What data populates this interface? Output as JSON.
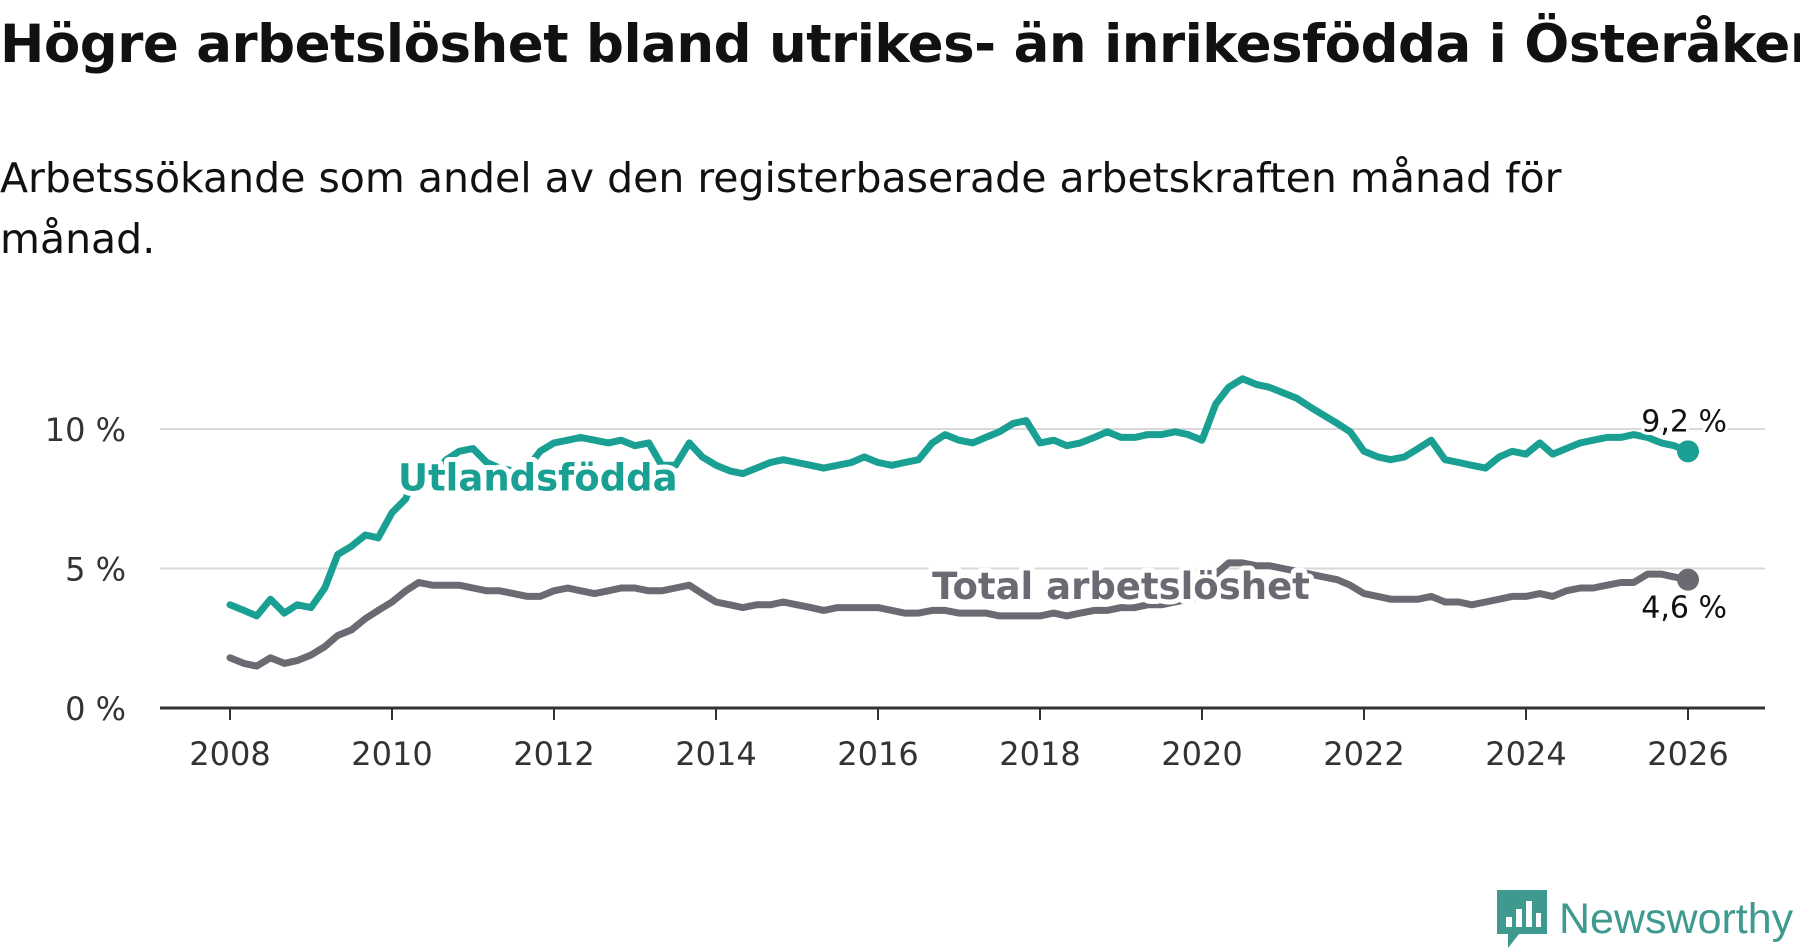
{
  "title": "Högre arbetslöshet bland utrikes- än inrikesfödda i Österåker",
  "subtitle": "Arbetssökande som andel av den registerbaserade arbetskraften månad för månad.",
  "logo": {
    "text": "Newsworthy",
    "icon": "chart-bars-icon",
    "color": "#3e9a8f"
  },
  "chart_data": {
    "type": "line",
    "x_unit": "year",
    "xlim": [
      2007.2,
      2026.9
    ],
    "ylim": [
      0,
      11.5
    ],
    "grid": true,
    "x_ticks": [
      {
        "value": 2008,
        "label": "2008"
      },
      {
        "value": 2010,
        "label": "2010"
      },
      {
        "value": 2012,
        "label": "2012"
      },
      {
        "value": 2014,
        "label": "2014"
      },
      {
        "value": 2016,
        "label": "2016"
      },
      {
        "value": 2018,
        "label": "2018"
      },
      {
        "value": 2020,
        "label": "2020"
      },
      {
        "value": 2022,
        "label": "2022"
      },
      {
        "value": 2024,
        "label": "2024"
      },
      {
        "value": 2026,
        "label": "2026"
      }
    ],
    "y_ticks": [
      {
        "value": 0,
        "label": "0 %"
      },
      {
        "value": 5,
        "label": "5 %"
      },
      {
        "value": 10,
        "label": "10 %"
      }
    ],
    "series": [
      {
        "name": "Utlandsfödda",
        "label": "Utlandsfödda",
        "color": "#19a092",
        "end_label": "9,2 %",
        "label_at": {
          "x": 2011.8,
          "y": 7.8
        },
        "points": [
          [
            2008.0,
            3.7
          ],
          [
            2008.17,
            3.5
          ],
          [
            2008.33,
            3.3
          ],
          [
            2008.5,
            3.9
          ],
          [
            2008.67,
            3.4
          ],
          [
            2008.83,
            3.7
          ],
          [
            2009.0,
            3.6
          ],
          [
            2009.17,
            4.3
          ],
          [
            2009.33,
            5.5
          ],
          [
            2009.5,
            5.8
          ],
          [
            2009.67,
            6.2
          ],
          [
            2009.83,
            6.1
          ],
          [
            2010.0,
            7.0
          ],
          [
            2010.17,
            7.5
          ],
          [
            2010.33,
            8.7
          ],
          [
            2010.5,
            8.3
          ],
          [
            2010.67,
            8.9
          ],
          [
            2010.83,
            9.2
          ],
          [
            2011.0,
            9.3
          ],
          [
            2011.17,
            8.8
          ],
          [
            2011.33,
            8.6
          ],
          [
            2011.5,
            8.5
          ],
          [
            2011.67,
            8.6
          ],
          [
            2011.83,
            9.2
          ],
          [
            2012.0,
            9.5
          ],
          [
            2012.17,
            9.6
          ],
          [
            2012.33,
            9.7
          ],
          [
            2012.5,
            9.6
          ],
          [
            2012.67,
            9.5
          ],
          [
            2012.83,
            9.6
          ],
          [
            2013.0,
            9.4
          ],
          [
            2013.17,
            9.5
          ],
          [
            2013.33,
            8.7
          ],
          [
            2013.5,
            8.7
          ],
          [
            2013.67,
            9.5
          ],
          [
            2013.83,
            9.0
          ],
          [
            2014.0,
            8.7
          ],
          [
            2014.17,
            8.5
          ],
          [
            2014.33,
            8.4
          ],
          [
            2014.5,
            8.6
          ],
          [
            2014.67,
            8.8
          ],
          [
            2014.83,
            8.9
          ],
          [
            2015.0,
            8.8
          ],
          [
            2015.17,
            8.7
          ],
          [
            2015.33,
            8.6
          ],
          [
            2015.5,
            8.7
          ],
          [
            2015.67,
            8.8
          ],
          [
            2015.83,
            9.0
          ],
          [
            2016.0,
            8.8
          ],
          [
            2016.17,
            8.7
          ],
          [
            2016.33,
            8.8
          ],
          [
            2016.5,
            8.9
          ],
          [
            2016.67,
            9.5
          ],
          [
            2016.83,
            9.8
          ],
          [
            2017.0,
            9.6
          ],
          [
            2017.17,
            9.5
          ],
          [
            2017.33,
            9.7
          ],
          [
            2017.5,
            9.9
          ],
          [
            2017.67,
            10.2
          ],
          [
            2017.83,
            10.3
          ],
          [
            2018.0,
            9.5
          ],
          [
            2018.17,
            9.6
          ],
          [
            2018.33,
            9.4
          ],
          [
            2018.5,
            9.5
          ],
          [
            2018.67,
            9.7
          ],
          [
            2018.83,
            9.9
          ],
          [
            2019.0,
            9.7
          ],
          [
            2019.17,
            9.7
          ],
          [
            2019.33,
            9.8
          ],
          [
            2019.5,
            9.8
          ],
          [
            2019.67,
            9.9
          ],
          [
            2019.83,
            9.8
          ],
          [
            2020.0,
            9.6
          ],
          [
            2020.17,
            10.9
          ],
          [
            2020.33,
            11.5
          ],
          [
            2020.5,
            11.8
          ],
          [
            2020.67,
            11.6
          ],
          [
            2020.83,
            11.5
          ],
          [
            2021.0,
            11.3
          ],
          [
            2021.17,
            11.1
          ],
          [
            2021.33,
            10.8
          ],
          [
            2021.5,
            10.5
          ],
          [
            2021.67,
            10.2
          ],
          [
            2021.83,
            9.9
          ],
          [
            2022.0,
            9.2
          ],
          [
            2022.17,
            9.0
          ],
          [
            2022.33,
            8.9
          ],
          [
            2022.5,
            9.0
          ],
          [
            2022.67,
            9.3
          ],
          [
            2022.83,
            9.6
          ],
          [
            2023.0,
            8.9
          ],
          [
            2023.17,
            8.8
          ],
          [
            2023.33,
            8.7
          ],
          [
            2023.5,
            8.6
          ],
          [
            2023.67,
            9.0
          ],
          [
            2023.83,
            9.2
          ],
          [
            2024.0,
            9.1
          ],
          [
            2024.17,
            9.5
          ],
          [
            2024.33,
            9.1
          ],
          [
            2024.5,
            9.3
          ],
          [
            2024.67,
            9.5
          ],
          [
            2024.83,
            9.6
          ],
          [
            2025.0,
            9.7
          ],
          [
            2025.17,
            9.7
          ],
          [
            2025.33,
            9.8
          ],
          [
            2025.5,
            9.7
          ],
          [
            2025.67,
            9.5
          ],
          [
            2025.83,
            9.4
          ],
          [
            2026.0,
            9.2
          ]
        ]
      },
      {
        "name": "Total arbetslöshet",
        "label": "Total arbetslöshet",
        "color": "#6b6a72",
        "end_label": "4,6 %",
        "label_at": {
          "x": 2019.0,
          "y": 3.9
        },
        "points": [
          [
            2008.0,
            1.8
          ],
          [
            2008.17,
            1.6
          ],
          [
            2008.33,
            1.5
          ],
          [
            2008.5,
            1.8
          ],
          [
            2008.67,
            1.6
          ],
          [
            2008.83,
            1.7
          ],
          [
            2009.0,
            1.9
          ],
          [
            2009.17,
            2.2
          ],
          [
            2009.33,
            2.6
          ],
          [
            2009.5,
            2.8
          ],
          [
            2009.67,
            3.2
          ],
          [
            2009.83,
            3.5
          ],
          [
            2010.0,
            3.8
          ],
          [
            2010.17,
            4.2
          ],
          [
            2010.33,
            4.5
          ],
          [
            2010.5,
            4.4
          ],
          [
            2010.67,
            4.4
          ],
          [
            2010.83,
            4.4
          ],
          [
            2011.0,
            4.3
          ],
          [
            2011.17,
            4.2
          ],
          [
            2011.33,
            4.2
          ],
          [
            2011.5,
            4.1
          ],
          [
            2011.67,
            4.0
          ],
          [
            2011.83,
            4.0
          ],
          [
            2012.0,
            4.2
          ],
          [
            2012.17,
            4.3
          ],
          [
            2012.33,
            4.2
          ],
          [
            2012.5,
            4.1
          ],
          [
            2012.67,
            4.2
          ],
          [
            2012.83,
            4.3
          ],
          [
            2013.0,
            4.3
          ],
          [
            2013.17,
            4.2
          ],
          [
            2013.33,
            4.2
          ],
          [
            2013.5,
            4.3
          ],
          [
            2013.67,
            4.4
          ],
          [
            2013.83,
            4.1
          ],
          [
            2014.0,
            3.8
          ],
          [
            2014.17,
            3.7
          ],
          [
            2014.33,
            3.6
          ],
          [
            2014.5,
            3.7
          ],
          [
            2014.67,
            3.7
          ],
          [
            2014.83,
            3.8
          ],
          [
            2015.0,
            3.7
          ],
          [
            2015.17,
            3.6
          ],
          [
            2015.33,
            3.5
          ],
          [
            2015.5,
            3.6
          ],
          [
            2015.67,
            3.6
          ],
          [
            2015.83,
            3.6
          ],
          [
            2016.0,
            3.6
          ],
          [
            2016.17,
            3.5
          ],
          [
            2016.33,
            3.4
          ],
          [
            2016.5,
            3.4
          ],
          [
            2016.67,
            3.5
          ],
          [
            2016.83,
            3.5
          ],
          [
            2017.0,
            3.4
          ],
          [
            2017.17,
            3.4
          ],
          [
            2017.33,
            3.4
          ],
          [
            2017.5,
            3.3
          ],
          [
            2017.67,
            3.3
          ],
          [
            2017.83,
            3.3
          ],
          [
            2018.0,
            3.3
          ],
          [
            2018.17,
            3.4
          ],
          [
            2018.33,
            3.3
          ],
          [
            2018.5,
            3.4
          ],
          [
            2018.67,
            3.5
          ],
          [
            2018.83,
            3.5
          ],
          [
            2019.0,
            3.6
          ],
          [
            2019.17,
            3.6
          ],
          [
            2019.33,
            3.7
          ],
          [
            2019.5,
            3.7
          ],
          [
            2019.67,
            3.8
          ],
          [
            2019.83,
            3.9
          ],
          [
            2020.0,
            4.0
          ],
          [
            2020.17,
            4.8
          ],
          [
            2020.33,
            5.2
          ],
          [
            2020.5,
            5.2
          ],
          [
            2020.67,
            5.1
          ],
          [
            2020.83,
            5.1
          ],
          [
            2021.0,
            5.0
          ],
          [
            2021.17,
            4.9
          ],
          [
            2021.33,
            4.8
          ],
          [
            2021.5,
            4.7
          ],
          [
            2021.67,
            4.6
          ],
          [
            2021.83,
            4.4
          ],
          [
            2022.0,
            4.1
          ],
          [
            2022.17,
            4.0
          ],
          [
            2022.33,
            3.9
          ],
          [
            2022.5,
            3.9
          ],
          [
            2022.67,
            3.9
          ],
          [
            2022.83,
            4.0
          ],
          [
            2023.0,
            3.8
          ],
          [
            2023.17,
            3.8
          ],
          [
            2023.33,
            3.7
          ],
          [
            2023.5,
            3.8
          ],
          [
            2023.67,
            3.9
          ],
          [
            2023.83,
            4.0
          ],
          [
            2024.0,
            4.0
          ],
          [
            2024.17,
            4.1
          ],
          [
            2024.33,
            4.0
          ],
          [
            2024.5,
            4.2
          ],
          [
            2024.67,
            4.3
          ],
          [
            2024.83,
            4.3
          ],
          [
            2025.0,
            4.4
          ],
          [
            2025.17,
            4.5
          ],
          [
            2025.33,
            4.5
          ],
          [
            2025.5,
            4.8
          ],
          [
            2025.67,
            4.8
          ],
          [
            2025.83,
            4.7
          ],
          [
            2026.0,
            4.6
          ]
        ]
      }
    ]
  }
}
